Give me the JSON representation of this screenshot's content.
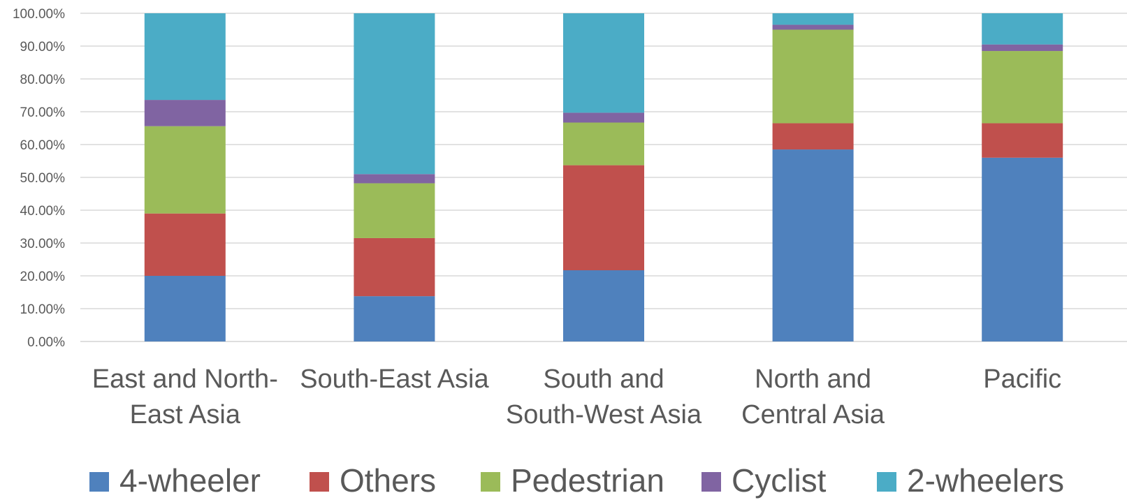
{
  "chart_data": {
    "type": "bar",
    "stacked": true,
    "categories": [
      [
        "East and North-",
        "East Asia"
      ],
      [
        "South-East Asia"
      ],
      [
        "South and",
        "South-West Asia"
      ],
      [
        "North and",
        "Central Asia"
      ],
      [
        "Pacific"
      ]
    ],
    "series": [
      {
        "name": "4-wheeler",
        "color": "#4F81BD",
        "values": [
          20.0,
          13.8,
          21.7,
          58.5,
          56.0
        ]
      },
      {
        "name": "Others",
        "color": "#C0504D",
        "values": [
          19.0,
          17.7,
          32.0,
          8.0,
          10.5
        ]
      },
      {
        "name": "Pedestrian",
        "color": "#9BBB59",
        "values": [
          26.6,
          16.7,
          13.0,
          28.5,
          22.0
        ]
      },
      {
        "name": "Cyclist",
        "color": "#8064A2",
        "values": [
          8.0,
          2.8,
          3.0,
          1.5,
          2.0
        ]
      },
      {
        "name": "2-wheelers",
        "color": "#4BACC6",
        "values": [
          26.4,
          49.0,
          30.3,
          3.5,
          9.5
        ]
      }
    ],
    "ylim": [
      0,
      100
    ],
    "yticks": [
      "0.00%",
      "10.00%",
      "20.00%",
      "30.00%",
      "40.00%",
      "50.00%",
      "60.00%",
      "70.00%",
      "80.00%",
      "90.00%",
      "100.00%"
    ],
    "grid": true,
    "legend": "bottom"
  }
}
